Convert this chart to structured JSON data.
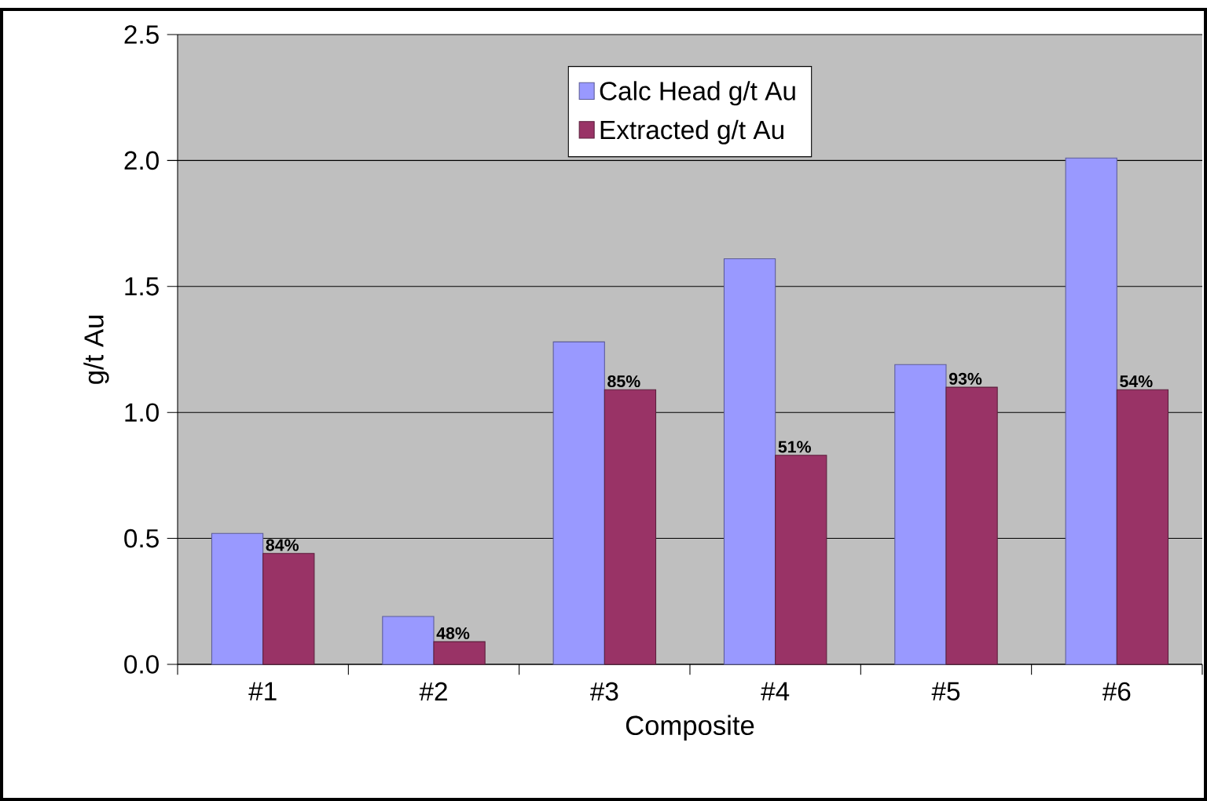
{
  "chart_data": {
    "type": "bar",
    "xlabel": "Composite",
    "ylabel": "g/t Au",
    "categories": [
      "#1",
      "#2",
      "#3",
      "#4",
      "#5",
      "#6"
    ],
    "series": [
      {
        "name": "Calc Head g/t Au",
        "color": "#9999ff",
        "values": [
          0.52,
          0.19,
          1.28,
          1.61,
          1.19,
          2.01
        ]
      },
      {
        "name": "Extracted g/t Au",
        "color": "#993366",
        "values": [
          0.44,
          0.09,
          1.09,
          0.83,
          1.1,
          1.09
        ]
      }
    ],
    "annotations": [
      {
        "text": "84%",
        "x": "#1",
        "y": 0.44
      },
      {
        "text": "48%",
        "x": "#2",
        "y": 0.09
      },
      {
        "text": "85%",
        "x": "#3",
        "y": 1.09
      },
      {
        "text": "51%",
        "x": "#4",
        "y": 0.83
      },
      {
        "text": "93%",
        "x": "#5",
        "y": 1.1
      },
      {
        "text": "54%",
        "x": "#6",
        "y": 1.09
      }
    ],
    "ylim": [
      0,
      2.5
    ],
    "yticks": [
      {
        "value": 0,
        "label": "0.0"
      },
      {
        "value": 0.5,
        "label": "0.5"
      },
      {
        "value": 1,
        "label": "1.0"
      },
      {
        "value": 1.5,
        "label": "1.5"
      },
      {
        "value": 2,
        "label": "2.0"
      },
      {
        "value": 2.5,
        "label": "2.5"
      }
    ],
    "grid": "y",
    "legend": "top"
  }
}
